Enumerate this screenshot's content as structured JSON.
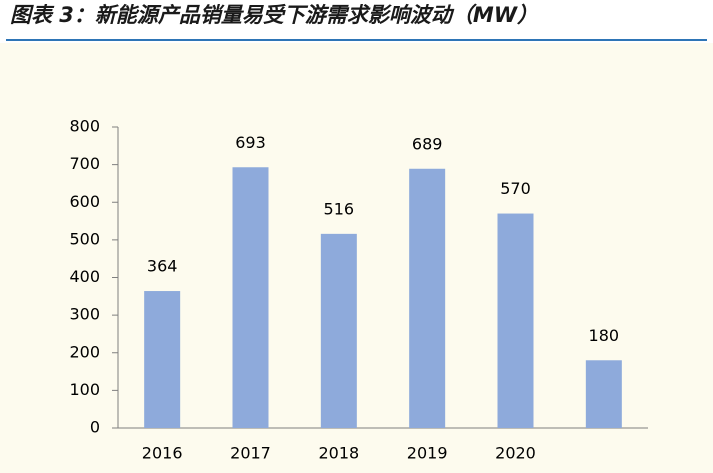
{
  "chart_data": {
    "type": "bar",
    "title": "图表 3：新能源产品销量易受下游需求影响波动（MW）",
    "categories": [
      "2016",
      "2017",
      "2018",
      "2019",
      "2020",
      null
    ],
    "values": [
      364,
      693,
      516,
      689,
      570,
      180
    ],
    "color": "#8eaadb",
    "ylim": [
      0,
      800
    ],
    "yticks": [
      0,
      100,
      200,
      300,
      400,
      500,
      600,
      700,
      800
    ],
    "grid": false
  }
}
